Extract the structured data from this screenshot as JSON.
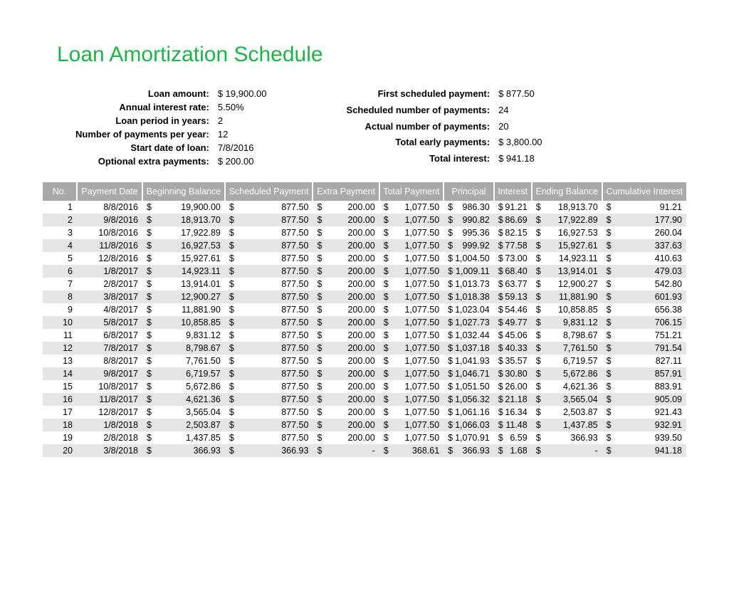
{
  "title": "Loan Amortization Schedule",
  "title_color": "#1fb24a",
  "header_bg": "#a9a9a9",
  "header_fg": "#ffffff",
  "row_alt_bg": "#e5e5e5",
  "summary_left": [
    {
      "label": "Loan amount:",
      "value": "$ 19,900.00"
    },
    {
      "label": "Annual interest rate:",
      "value": "5.50%"
    },
    {
      "label": "Loan period in years:",
      "value": "2"
    },
    {
      "label": "Number of payments per year:",
      "value": "12"
    },
    {
      "label": "Start date of loan:",
      "value": "7/8/2016"
    },
    {
      "label": "Optional extra payments:",
      "value": "$ 200.00"
    }
  ],
  "summary_right": [
    {
      "label": "First scheduled payment:",
      "value": "$ 877.50"
    },
    {
      "label": "Scheduled number of payments:",
      "value": "24"
    },
    {
      "label": "Actual number of payments:",
      "value": "20"
    },
    {
      "label": "Total early payments:",
      "value": "$ 3,800.00"
    },
    {
      "label": "Total interest:",
      "value": "$ 941.18"
    }
  ],
  "columns": [
    "No.",
    "Payment Date",
    "Beginning Balance",
    "Scheduled Payment",
    "Extra Payment",
    "Total Payment",
    "Principal",
    "Interest",
    "Ending Balance",
    "Cumulative Interest"
  ],
  "rows": [
    {
      "no": "1",
      "date": "8/8/2016",
      "beg": "19,900.00",
      "sched": "877.50",
      "extra": "200.00",
      "total": "1,077.50",
      "prin": "986.30",
      "int": "91.21",
      "end": "18,913.70",
      "cum": "91.21"
    },
    {
      "no": "2",
      "date": "9/8/2016",
      "beg": "18,913.70",
      "sched": "877.50",
      "extra": "200.00",
      "total": "1,077.50",
      "prin": "990.82",
      "int": "86.69",
      "end": "17,922.89",
      "cum": "177.90"
    },
    {
      "no": "3",
      "date": "10/8/2016",
      "beg": "17,922.89",
      "sched": "877.50",
      "extra": "200.00",
      "total": "1,077.50",
      "prin": "995.36",
      "int": "82.15",
      "end": "16,927.53",
      "cum": "260.04"
    },
    {
      "no": "4",
      "date": "11/8/2016",
      "beg": "16,927.53",
      "sched": "877.50",
      "extra": "200.00",
      "total": "1,077.50",
      "prin": "999.92",
      "int": "77.58",
      "end": "15,927.61",
      "cum": "337.63"
    },
    {
      "no": "5",
      "date": "12/8/2016",
      "beg": "15,927.61",
      "sched": "877.50",
      "extra": "200.00",
      "total": "1,077.50",
      "prin": "1,004.50",
      "int": "73.00",
      "end": "14,923.11",
      "cum": "410.63"
    },
    {
      "no": "6",
      "date": "1/8/2017",
      "beg": "14,923.11",
      "sched": "877.50",
      "extra": "200.00",
      "total": "1,077.50",
      "prin": "1,009.11",
      "int": "68.40",
      "end": "13,914.01",
      "cum": "479.03"
    },
    {
      "no": "7",
      "date": "2/8/2017",
      "beg": "13,914.01",
      "sched": "877.50",
      "extra": "200.00",
      "total": "1,077.50",
      "prin": "1,013.73",
      "int": "63.77",
      "end": "12,900.27",
      "cum": "542.80"
    },
    {
      "no": "8",
      "date": "3/8/2017",
      "beg": "12,900.27",
      "sched": "877.50",
      "extra": "200.00",
      "total": "1,077.50",
      "prin": "1,018.38",
      "int": "59.13",
      "end": "11,881.90",
      "cum": "601.93"
    },
    {
      "no": "9",
      "date": "4/8/2017",
      "beg": "11,881.90",
      "sched": "877.50",
      "extra": "200.00",
      "total": "1,077.50",
      "prin": "1,023.04",
      "int": "54.46",
      "end": "10,858.85",
      "cum": "656.38"
    },
    {
      "no": "10",
      "date": "5/8/2017",
      "beg": "10,858.85",
      "sched": "877.50",
      "extra": "200.00",
      "total": "1,077.50",
      "prin": "1,027.73",
      "int": "49.77",
      "end": "9,831.12",
      "cum": "706.15"
    },
    {
      "no": "11",
      "date": "6/8/2017",
      "beg": "9,831.12",
      "sched": "877.50",
      "extra": "200.00",
      "total": "1,077.50",
      "prin": "1,032.44",
      "int": "45.06",
      "end": "8,798.67",
      "cum": "751.21"
    },
    {
      "no": "12",
      "date": "7/8/2017",
      "beg": "8,798.67",
      "sched": "877.50",
      "extra": "200.00",
      "total": "1,077.50",
      "prin": "1,037.18",
      "int": "40.33",
      "end": "7,761.50",
      "cum": "791.54"
    },
    {
      "no": "13",
      "date": "8/8/2017",
      "beg": "7,761.50",
      "sched": "877.50",
      "extra": "200.00",
      "total": "1,077.50",
      "prin": "1,041.93",
      "int": "35.57",
      "end": "6,719.57",
      "cum": "827.11"
    },
    {
      "no": "14",
      "date": "9/8/2017",
      "beg": "6,719.57",
      "sched": "877.50",
      "extra": "200.00",
      "total": "1,077.50",
      "prin": "1,046.71",
      "int": "30.80",
      "end": "5,672.86",
      "cum": "857.91"
    },
    {
      "no": "15",
      "date": "10/8/2017",
      "beg": "5,672.86",
      "sched": "877.50",
      "extra": "200.00",
      "total": "1,077.50",
      "prin": "1,051.50",
      "int": "26.00",
      "end": "4,621.36",
      "cum": "883.91"
    },
    {
      "no": "16",
      "date": "11/8/2017",
      "beg": "4,621.36",
      "sched": "877.50",
      "extra": "200.00",
      "total": "1,077.50",
      "prin": "1,056.32",
      "int": "21.18",
      "end": "3,565.04",
      "cum": "905.09"
    },
    {
      "no": "17",
      "date": "12/8/2017",
      "beg": "3,565.04",
      "sched": "877.50",
      "extra": "200.00",
      "total": "1,077.50",
      "prin": "1,061.16",
      "int": "16.34",
      "end": "2,503.87",
      "cum": "921.43"
    },
    {
      "no": "18",
      "date": "1/8/2018",
      "beg": "2,503.87",
      "sched": "877.50",
      "extra": "200.00",
      "total": "1,077.50",
      "prin": "1,066.03",
      "int": "11.48",
      "end": "1,437.85",
      "cum": "932.91"
    },
    {
      "no": "19",
      "date": "2/8/2018",
      "beg": "1,437.85",
      "sched": "877.50",
      "extra": "200.00",
      "total": "1,077.50",
      "prin": "1,070.91",
      "int": "6.59",
      "end": "366.93",
      "cum": "939.50"
    },
    {
      "no": "20",
      "date": "3/8/2018",
      "beg": "366.93",
      "sched": "366.93",
      "extra": "-",
      "total": "368.61",
      "prin": "366.93",
      "int": "1.68",
      "end": "-",
      "cum": "941.18"
    }
  ]
}
